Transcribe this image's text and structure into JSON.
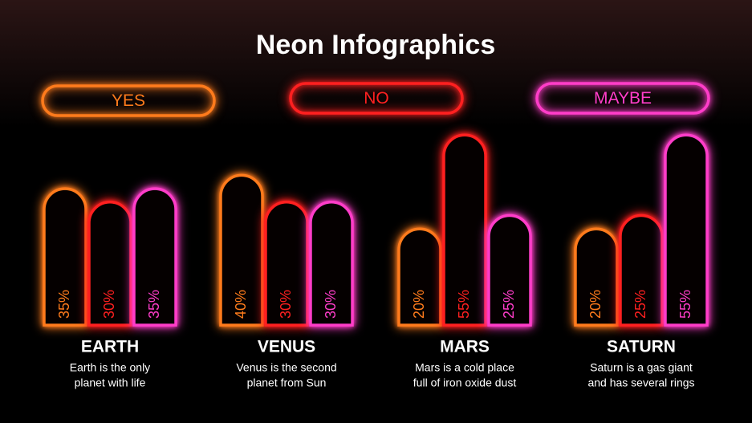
{
  "chart_data": {
    "type": "bar",
    "title": "Neon Infographics",
    "categories": [
      "EARTH",
      "VENUS",
      "MARS",
      "SATURN"
    ],
    "descriptions": [
      [
        "Earth is the only",
        "planet with life"
      ],
      [
        "Venus is the second",
        "planet from Sun"
      ],
      [
        "Mars is a cold place",
        "full of iron oxide dust"
      ],
      [
        "Saturn is a gas giant",
        "and has several rings"
      ]
    ],
    "series": [
      {
        "name": "YES",
        "color": "#ff7b1c",
        "values": [
          35,
          40,
          20,
          20
        ],
        "value_labels": [
          "35%",
          "40%",
          "20%",
          "20%"
        ]
      },
      {
        "name": "NO",
        "color": "#ff2020",
        "values": [
          30,
          30,
          55,
          25
        ],
        "value_labels": [
          "30%",
          "30%",
          "55%",
          "25%"
        ]
      },
      {
        "name": "MAYBE",
        "color": "#ff3dc9",
        "values": [
          35,
          30,
          25,
          55
        ],
        "value_labels": [
          "35%",
          "30%",
          "25%",
          "55%"
        ]
      }
    ]
  }
}
